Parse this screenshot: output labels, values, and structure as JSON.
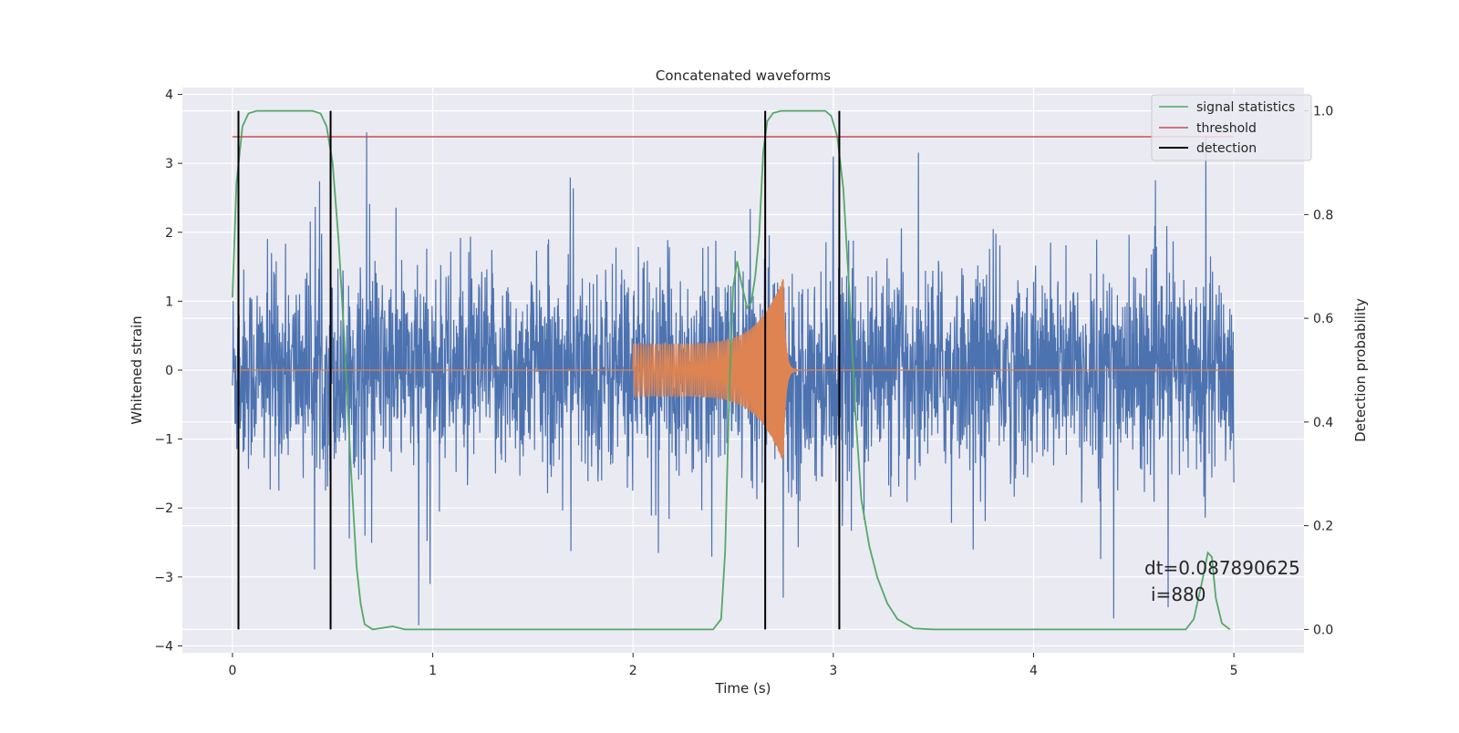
{
  "chart_data": {
    "type": "line",
    "title": "Concatenated waveforms",
    "xlabel": "Time (s)",
    "ylabel": "Whitened strain",
    "y2label": "Detection probability",
    "xlim": [
      -0.25,
      5.35
    ],
    "ylim": [
      -4.1,
      4.1
    ],
    "y2lim": [
      -0.045,
      1.045
    ],
    "xticks": [
      0,
      1,
      2,
      3,
      4,
      5
    ],
    "yticks": [
      -4,
      -3,
      -2,
      -1,
      0,
      1,
      2,
      3,
      4
    ],
    "y2ticks": [
      0.0,
      0.2,
      0.4,
      0.6,
      0.8,
      1.0
    ],
    "xtick_labels": [
      "0",
      "1",
      "2",
      "3",
      "4",
      "5"
    ],
    "ytick_labels": [
      "−4",
      "−3",
      "−2",
      "−1",
      "0",
      "1",
      "2",
      "3",
      "4"
    ],
    "y2tick_labels": [
      "0.0",
      "0.2",
      "0.4",
      "0.6",
      "0.8",
      "1.0"
    ],
    "grid": true,
    "legend_position": "top-right",
    "colors": {
      "strain": "#4c72b0",
      "template": "#dd8452",
      "signal_statistics": "#55a868",
      "threshold": "#c44e52",
      "detection": "#000000",
      "background": "#eaeaf2",
      "grid": "#ffffff"
    },
    "series": [
      {
        "name": "signal statistics",
        "axis": "right",
        "points": [
          [
            0.0,
            0.64
          ],
          [
            0.02,
            0.86
          ],
          [
            0.05,
            0.97
          ],
          [
            0.08,
            0.995
          ],
          [
            0.12,
            1.0
          ],
          [
            0.4,
            1.0
          ],
          [
            0.44,
            0.995
          ],
          [
            0.47,
            0.97
          ],
          [
            0.5,
            0.9
          ],
          [
            0.53,
            0.75
          ],
          [
            0.56,
            0.55
          ],
          [
            0.59,
            0.32
          ],
          [
            0.62,
            0.12
          ],
          [
            0.64,
            0.05
          ],
          [
            0.66,
            0.01
          ],
          [
            0.7,
            0.0
          ],
          [
            0.8,
            0.006
          ],
          [
            0.86,
            0.0
          ],
          [
            2.4,
            0.0
          ],
          [
            2.44,
            0.02
          ],
          [
            2.46,
            0.15
          ],
          [
            2.48,
            0.45
          ],
          [
            2.5,
            0.66
          ],
          [
            2.52,
            0.71
          ],
          [
            2.54,
            0.67
          ],
          [
            2.57,
            0.62
          ],
          [
            2.59,
            0.63
          ],
          [
            2.61,
            0.68
          ],
          [
            2.63,
            0.76
          ],
          [
            2.65,
            0.92
          ],
          [
            2.67,
            0.98
          ],
          [
            2.7,
            0.996
          ],
          [
            2.74,
            1.0
          ],
          [
            2.96,
            1.0
          ],
          [
            2.99,
            0.99
          ],
          [
            3.02,
            0.95
          ],
          [
            3.05,
            0.85
          ],
          [
            3.08,
            0.65
          ],
          [
            3.11,
            0.42
          ],
          [
            3.14,
            0.25
          ],
          [
            3.18,
            0.16
          ],
          [
            3.22,
            0.1
          ],
          [
            3.27,
            0.05
          ],
          [
            3.32,
            0.02
          ],
          [
            3.4,
            0.002
          ],
          [
            3.5,
            0.0
          ],
          [
            4.76,
            0.0
          ],
          [
            4.8,
            0.02
          ],
          [
            4.84,
            0.09
          ],
          [
            4.87,
            0.148
          ],
          [
            4.89,
            0.14
          ],
          [
            4.91,
            0.06
          ],
          [
            4.94,
            0.012
          ],
          [
            4.98,
            0.0
          ]
        ]
      },
      {
        "name": "threshold",
        "axis": "right",
        "points": [
          [
            0.0,
            0.95
          ],
          [
            5.0,
            0.95
          ]
        ]
      },
      {
        "name": "detection",
        "axis": "right",
        "vlines_x": [
          0.03,
          0.49,
          2.66,
          3.03
        ],
        "ymin": 0.0,
        "ymax": 1.0
      }
    ],
    "strain_series": {
      "axis": "left",
      "x_range": [
        0.0,
        5.0
      ],
      "typical_amplitude": 1.5,
      "max_amplitude": 3.7,
      "peaks": [
        [
          0.67,
          3.45
        ],
        [
          0.93,
          -3.7
        ],
        [
          2.75,
          -3.3
        ],
        [
          3.0,
          3.1
        ],
        [
          4.4,
          -3.6
        ],
        [
          4.86,
          3.4
        ]
      ]
    },
    "template_series": {
      "axis": "left",
      "x_range": [
        2.0,
        2.76
      ],
      "start_amplitude": 0.38,
      "peak_amplitude": 1.35,
      "peak_time": 2.75,
      "decay_end": 2.85
    },
    "annotations": [
      "dt=0.087890625",
      "i=880"
    ]
  }
}
